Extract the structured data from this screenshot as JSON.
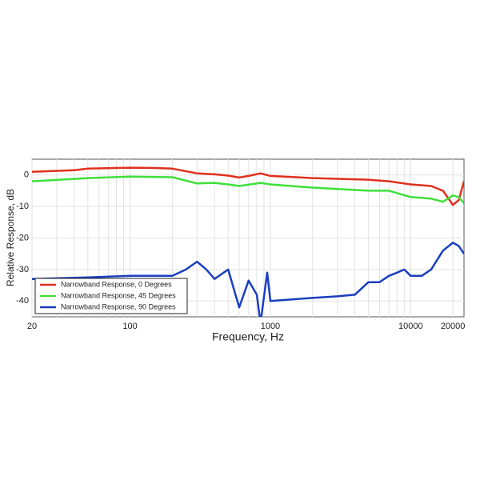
{
  "chart_data": {
    "type": "line",
    "x_label": "Frequency, Hz",
    "y_label": "Relative Response, dB",
    "xscale": "log",
    "minor_grid": true,
    "grid": true,
    "legend": "lower left",
    "xlim": [
      20,
      24000
    ],
    "ylim": [
      -45,
      5
    ],
    "xticks": [
      20,
      100,
      1000,
      10000,
      20000
    ],
    "yticks": [
      0,
      -10,
      -20,
      -30,
      -40
    ],
    "series": [
      {
        "name": "Narrowband Response, 0 Degrees",
        "color": "#e0301e",
        "x": [
          20,
          40,
          50,
          100,
          150,
          200,
          300,
          400,
          500,
          600,
          700,
          850,
          1000,
          2000,
          5000,
          7000,
          10000,
          14000,
          17000,
          20000,
          22000,
          24000
        ],
        "values": [
          1,
          1.5,
          2,
          2.3,
          2.2,
          2,
          0.5,
          0.2,
          -0.2,
          -0.8,
          -0.3,
          0.5,
          -0.3,
          -1,
          -1.5,
          -2,
          -3,
          -3.5,
          -5,
          -9.5,
          -8,
          -2
        ]
      },
      {
        "name": "Narrowband Response, 45 Degrees",
        "color": "#3ee03a",
        "x": [
          20,
          50,
          100,
          200,
          300,
          400,
          500,
          600,
          850,
          1000,
          2000,
          5000,
          7000,
          10000,
          14000,
          17000,
          20000,
          22000,
          24000
        ],
        "values": [
          -2,
          -1,
          -0.5,
          -0.7,
          -2.7,
          -2.5,
          -3,
          -3.5,
          -2.5,
          -3,
          -4,
          -5,
          -5,
          -7,
          -7.5,
          -8.5,
          -6.5,
          -7,
          -9
        ]
      },
      {
        "name": "Narrowband Response, 90 Degrees",
        "color": "#1a3fc0",
        "x": [
          20,
          50,
          100,
          200,
          250,
          300,
          350,
          400,
          500,
          600,
          700,
          800,
          850,
          950,
          1000,
          2000,
          3000,
          4000,
          5000,
          6000,
          7000,
          8000,
          9000,
          10000,
          12000,
          14000,
          17000,
          20000,
          22000,
          24000
        ],
        "values": [
          -33,
          -32.5,
          -32,
          -32,
          -30,
          -27.5,
          -30,
          -33,
          -30,
          -42,
          -33.5,
          -38,
          -47,
          -31,
          -40,
          -39,
          -38.5,
          -38,
          -34,
          -34,
          -32,
          -31,
          -30,
          -32,
          -32,
          -30,
          -24,
          -21.5,
          -22.5,
          -25
        ]
      }
    ]
  }
}
